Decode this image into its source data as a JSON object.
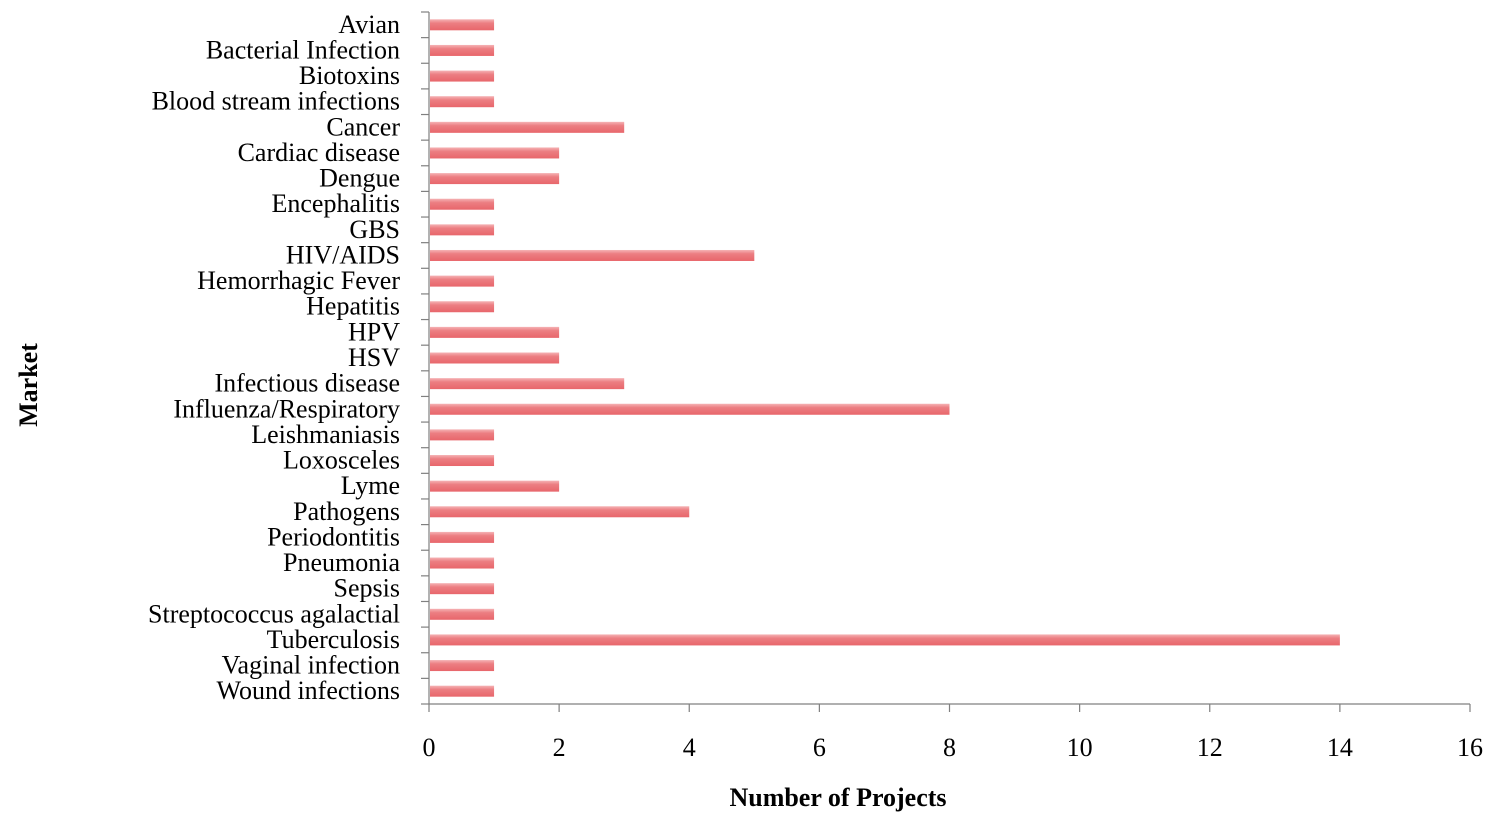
{
  "chart_data": {
    "type": "bar",
    "orientation": "horizontal",
    "title": "",
    "xlabel": "Number of Projects",
    "ylabel": "Market",
    "xlim": [
      0,
      16
    ],
    "xticks": [
      "0",
      "2",
      "4",
      "6",
      "8",
      "10",
      "12",
      "14",
      "16"
    ],
    "grid": false,
    "legend": "none",
    "bar_color": "#e8666b",
    "bar_highlight": "#f5b3b5",
    "categories": [
      "Avian ",
      "Bacterial Infection",
      "Biotoxins",
      "Blood stream infections",
      "Cancer",
      "Cardiac disease",
      "Dengue",
      "Encephalitis",
      "GBS",
      "HIV/AIDS",
      "Hemorrhagic Fever",
      "Hepatitis",
      "HPV",
      "HSV",
      "Infectious disease",
      "Influenza/Respiratory",
      "Leishmaniasis",
      "Loxosceles ",
      "Lyme",
      "Pathogens",
      "Periodontitis",
      "Pneumonia",
      "Sepsis",
      "Streptococcus agalactial",
      "Tuberculosis",
      "Vaginal infection",
      "Wound infections"
    ],
    "values": [
      1,
      1,
      1,
      1,
      3,
      2,
      2,
      1,
      1,
      5,
      1,
      1,
      2,
      2,
      3,
      8,
      1,
      1,
      2,
      4,
      1,
      1,
      1,
      1,
      14,
      1,
      1
    ]
  }
}
